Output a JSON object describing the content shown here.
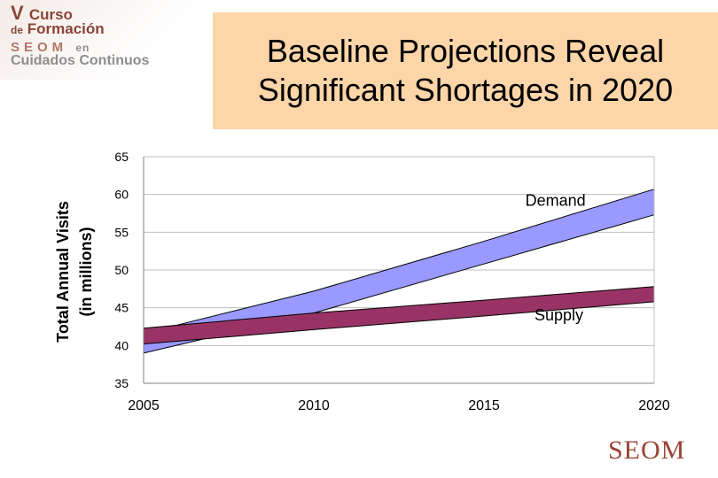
{
  "logo": {
    "line1_v": "V",
    "line1_rest": "Curso",
    "line2_de": "de",
    "line2_rest": "Formación",
    "line3_seom": "SEOM",
    "line3_en": "en",
    "line4": "Cuidados Continuos"
  },
  "title": {
    "line1": "Baseline Projections Reveal",
    "line2": "Significant Shortages in 2020"
  },
  "footer_logo": "SEOM",
  "colors": {
    "title_bg": "#fcd5a8",
    "demand_fill": "#9999ff",
    "supply_fill": "#993366",
    "logo_red": "#8a4538",
    "logo_gray": "#8e8e8e"
  },
  "chart_data": {
    "type": "area",
    "title": "",
    "xlabel": "",
    "ylabel": "Total Annual Visits",
    "ylabel_sub": "(in millions)",
    "xlim": [
      2005,
      2020
    ],
    "ylim": [
      35,
      65
    ],
    "x_ticks": [
      2005,
      2010,
      2015,
      2020
    ],
    "y_ticks": [
      35,
      40,
      45,
      50,
      55,
      60,
      65
    ],
    "grid": true,
    "series": [
      {
        "name": "Demand",
        "x": [
          2005,
          2010,
          2015,
          2020
        ],
        "lower": [
          39,
          44.3,
          50.8,
          57.3
        ],
        "upper": [
          41.6,
          47.2,
          53.8,
          60.7
        ]
      },
      {
        "name": "Supply",
        "x": [
          2005,
          2010,
          2015,
          2020
        ],
        "lower": [
          40.2,
          42.1,
          43.9,
          45.8
        ],
        "upper": [
          42.3,
          44.3,
          46,
          47.8
        ]
      }
    ]
  }
}
